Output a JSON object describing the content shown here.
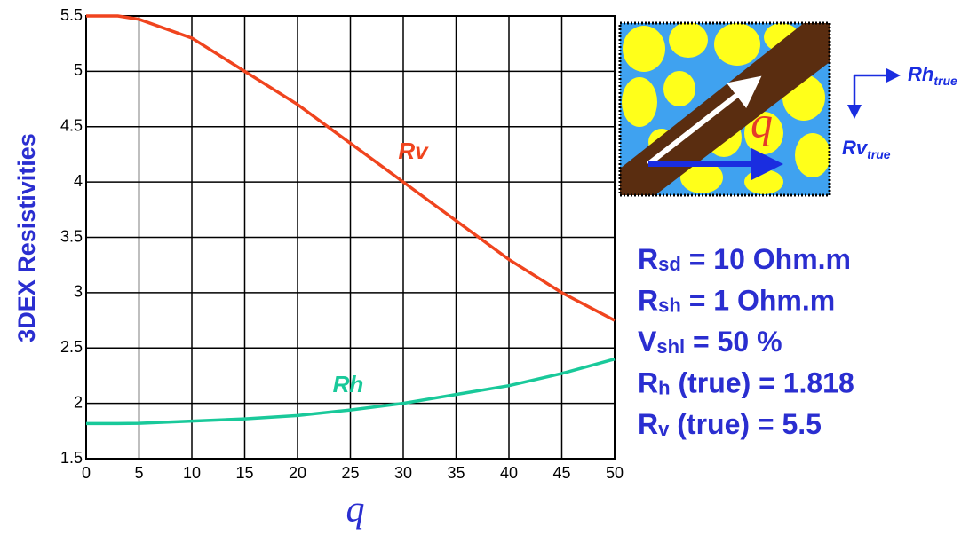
{
  "chart_data": {
    "type": "line",
    "x_label": "q",
    "y_label": "3DEX Resistivities",
    "x": [
      0,
      3,
      5,
      10,
      15,
      20,
      25,
      30,
      35,
      40,
      45,
      50
    ],
    "series": [
      {
        "name": "Rv",
        "color": "#f0441e",
        "values": [
          5.5,
          5.5,
          5.47,
          5.3,
          5.0,
          4.7,
          4.35,
          4.0,
          3.65,
          3.3,
          3.0,
          2.75
        ]
      },
      {
        "name": "Rh",
        "color": "#19c99a",
        "values": [
          1.818,
          1.818,
          1.82,
          1.84,
          1.86,
          1.89,
          1.94,
          2.0,
          2.08,
          2.16,
          2.27,
          2.4
        ]
      }
    ],
    "xlim": [
      0,
      50
    ],
    "xticks": [
      0,
      5,
      10,
      15,
      20,
      25,
      30,
      35,
      40,
      45,
      50
    ],
    "ylim": [
      1.5,
      5.5
    ],
    "yticks": [
      1.5,
      2,
      2.5,
      3,
      3.5,
      4,
      4.5,
      5,
      5.5
    ],
    "grid": true
  },
  "inset": {
    "angle_label": "q",
    "rh_label": {
      "symbol": "Rh",
      "subscript": "true"
    },
    "rv_label": {
      "symbol": "Rv",
      "subscript": "true"
    }
  },
  "parameters": [
    {
      "symbol": "R",
      "subscript": "sd",
      "text": " = 10 Ohm.m"
    },
    {
      "symbol": "R",
      "subscript": "sh",
      "text": " = 1   Ohm.m"
    },
    {
      "symbol": "V",
      "subscript": "shl",
      "text": " = 50 %"
    },
    {
      "symbol": "R",
      "subscript": "h",
      "text": " (true) = 1.818"
    },
    {
      "symbol": "R",
      "subscript": "v",
      "text": " (true) = 5.5"
    }
  ]
}
